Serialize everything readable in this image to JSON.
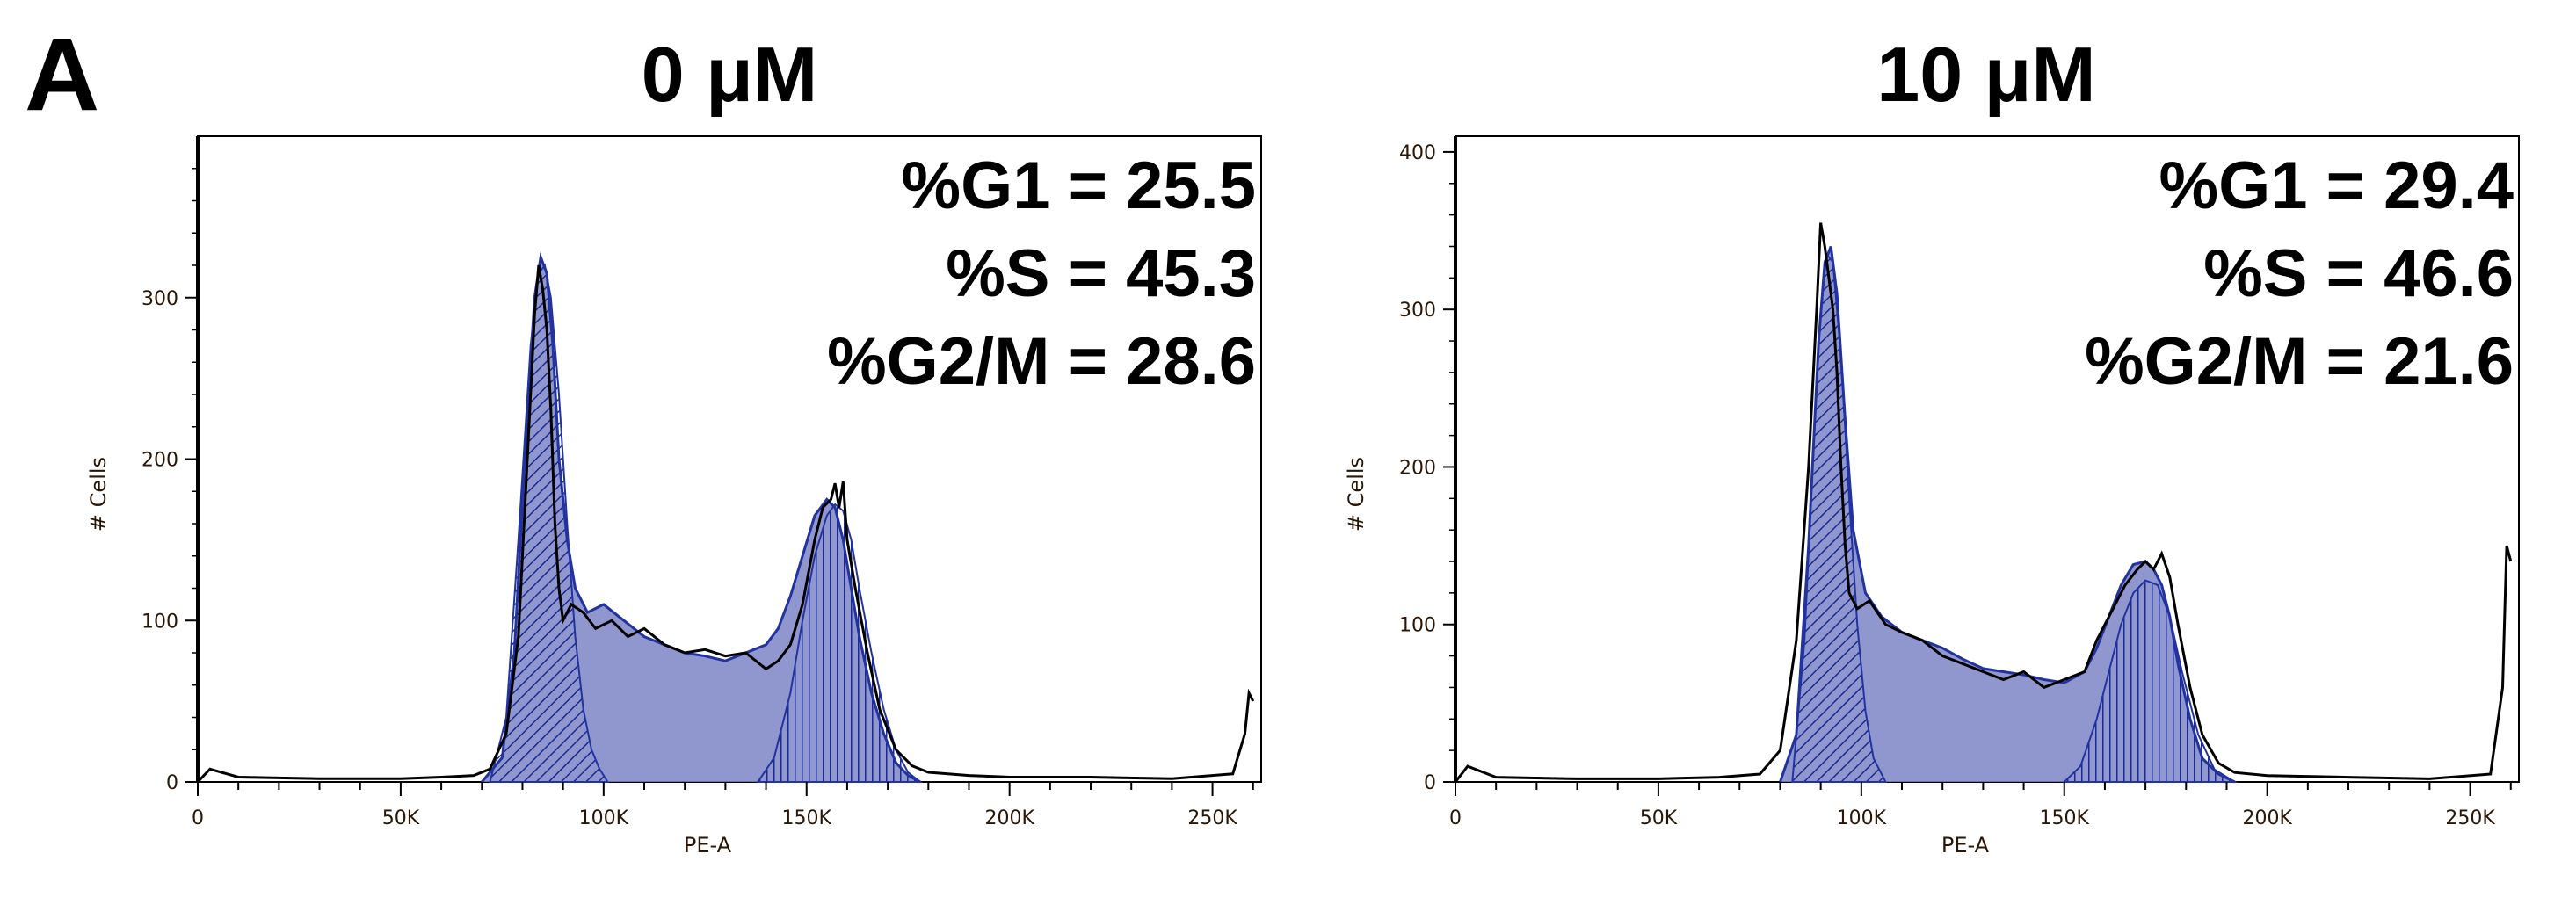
{
  "panel_letter": "A",
  "chart_data": [
    {
      "type": "area",
      "title": "0 μM",
      "xlabel": "PE-A",
      "ylabel": "# Cells",
      "xlim": [
        0,
        262000
      ],
      "ylim": [
        0,
        400
      ],
      "xticks": [
        0,
        50000,
        100000,
        150000,
        200000,
        250000
      ],
      "xtick_labels": [
        "0",
        "50K",
        "100K",
        "150K",
        "200K",
        "250K"
      ],
      "yticks": [
        0,
        100,
        200,
        300
      ],
      "ytick_labels": [
        "0",
        "100",
        "200",
        "300"
      ],
      "grid": false,
      "stats": [
        "%G1 = 25.5",
        "%S = 45.3",
        "%G2/M = 28.6"
      ],
      "colors": {
        "data": "#000000",
        "fit": "#2233a0",
        "fill": "#7d85c6"
      },
      "series": [
        {
          "role": "data",
          "x": [
            0,
            3000,
            10000,
            30000,
            50000,
            60000,
            68000,
            72000,
            76000,
            79000,
            81000,
            83000,
            84000,
            85000,
            86000,
            87000,
            88000,
            89000,
            90000,
            92000,
            95000,
            98000,
            102000,
            106000,
            110000,
            115000,
            120000,
            125000,
            130000,
            135000,
            140000,
            143000,
            146000,
            149000,
            152000,
            154000,
            156000,
            157000,
            158000,
            159000,
            160000,
            162000,
            165000,
            168000,
            172000,
            176000,
            180000,
            190000,
            200000,
            220000,
            240000,
            255000,
            258000,
            259000,
            260000
          ],
          "y": [
            0,
            8,
            3,
            2,
            2,
            3,
            4,
            8,
            30,
            90,
            190,
            290,
            320,
            305,
            280,
            230,
            160,
            120,
            100,
            110,
            105,
            95,
            100,
            90,
            95,
            85,
            80,
            82,
            78,
            80,
            70,
            75,
            85,
            110,
            150,
            170,
            175,
            185,
            170,
            186,
            150,
            120,
            80,
            45,
            20,
            10,
            6,
            4,
            3,
            3,
            2,
            5,
            30,
            55,
            50
          ]
        },
        {
          "role": "fit",
          "x": [
            70000,
            75000,
            78000,
            81000,
            83000,
            84500,
            86000,
            87500,
            89000,
            91000,
            93000,
            96000,
            100000,
            105000,
            110000,
            115000,
            120000,
            125000,
            130000,
            135000,
            140000,
            143000,
            146000,
            149000,
            152000,
            155000,
            157000,
            159000,
            161000,
            163000,
            166000,
            169000,
            172000,
            175000,
            178000
          ],
          "y": [
            0,
            15,
            80,
            220,
            300,
            325,
            315,
            270,
            200,
            150,
            120,
            105,
            110,
            100,
            90,
            85,
            80,
            78,
            75,
            80,
            85,
            95,
            115,
            140,
            165,
            175,
            170,
            150,
            120,
            90,
            55,
            30,
            12,
            4,
            0
          ]
        },
        {
          "role": "g1",
          "x": [
            72000,
            76000,
            79000,
            82000,
            84000,
            85500,
            87000,
            89000,
            91000,
            93000,
            95000,
            97000,
            99000,
            101000
          ],
          "y": [
            0,
            40,
            150,
            270,
            315,
            320,
            300,
            240,
            160,
            90,
            45,
            20,
            8,
            0
          ]
        },
        {
          "role": "g2",
          "x": [
            138000,
            142000,
            146000,
            149000,
            152000,
            155000,
            157000,
            159000,
            161000,
            163000,
            166000,
            169000,
            172000,
            175000,
            178000
          ],
          "y": [
            0,
            15,
            55,
            100,
            140,
            165,
            172,
            168,
            150,
            120,
            80,
            45,
            20,
            6,
            0
          ]
        }
      ]
    },
    {
      "type": "area",
      "title": "10 μM",
      "xlabel": "PE-A",
      "ylabel": "# Cells",
      "xlim": [
        0,
        262000
      ],
      "ylim": [
        0,
        410
      ],
      "xticks": [
        0,
        50000,
        100000,
        150000,
        200000,
        250000
      ],
      "xtick_labels": [
        "0",
        "50K",
        "100K",
        "150K",
        "200K",
        "250K"
      ],
      "yticks": [
        0,
        100,
        200,
        300,
        400
      ],
      "ytick_labels": [
        "0",
        "100",
        "200",
        "300",
        "400"
      ],
      "grid": false,
      "stats": [
        "%G1 = 29.4",
        "%S = 46.6",
        "%G2/M = 21.6"
      ],
      "colors": {
        "data": "#000000",
        "fit": "#2233a0",
        "fill": "#7d85c6"
      },
      "series": [
        {
          "role": "data",
          "x": [
            0,
            3000,
            10000,
            30000,
            50000,
            65000,
            75000,
            80000,
            84000,
            87000,
            89000,
            90000,
            91000,
            92000,
            93000,
            94000,
            95000,
            96000,
            97000,
            99000,
            102000,
            106000,
            110000,
            115000,
            120000,
            125000,
            130000,
            135000,
            140000,
            145000,
            150000,
            155000,
            158000,
            162000,
            165000,
            168000,
            170000,
            172000,
            174000,
            176000,
            178000,
            181000,
            184000,
            188000,
            192000,
            200000,
            220000,
            240000,
            255000,
            258000,
            259000,
            260000
          ],
          "y": [
            0,
            10,
            3,
            2,
            2,
            3,
            5,
            20,
            90,
            200,
            300,
            355,
            340,
            320,
            300,
            260,
            200,
            150,
            120,
            110,
            115,
            100,
            95,
            90,
            80,
            75,
            70,
            65,
            70,
            60,
            65,
            70,
            90,
            110,
            125,
            135,
            140,
            135,
            145,
            130,
            100,
            60,
            30,
            12,
            6,
            4,
            3,
            2,
            5,
            60,
            150,
            140
          ]
        },
        {
          "role": "fit",
          "x": [
            80000,
            84000,
            87000,
            89500,
            91000,
            92500,
            94000,
            96000,
            98000,
            101000,
            105000,
            110000,
            115000,
            120000,
            125000,
            130000,
            135000,
            140000,
            145000,
            150000,
            155000,
            158000,
            161000,
            164000,
            167000,
            170000,
            172000,
            174000,
            176000,
            178000,
            181000,
            184000,
            188000,
            192000
          ],
          "y": [
            0,
            30,
            150,
            280,
            330,
            340,
            310,
            230,
            160,
            120,
            105,
            95,
            90,
            85,
            78,
            72,
            70,
            68,
            65,
            63,
            70,
            85,
            105,
            125,
            138,
            140,
            135,
            125,
            105,
            75,
            40,
            15,
            5,
            0
          ]
        },
        {
          "role": "g1",
          "x": [
            83000,
            86000,
            88000,
            90000,
            91500,
            93000,
            95000,
            97000,
            99000,
            101000,
            103000,
            106000
          ],
          "y": [
            0,
            90,
            200,
            300,
            335,
            330,
            270,
            180,
            100,
            45,
            15,
            0
          ]
        },
        {
          "role": "g2",
          "x": [
            150000,
            154000,
            158000,
            161000,
            164000,
            167000,
            170000,
            173000,
            176000,
            179000,
            183000,
            187000,
            192000
          ],
          "y": [
            0,
            10,
            40,
            70,
            100,
            120,
            128,
            125,
            105,
            70,
            30,
            8,
            0
          ]
        }
      ]
    }
  ]
}
